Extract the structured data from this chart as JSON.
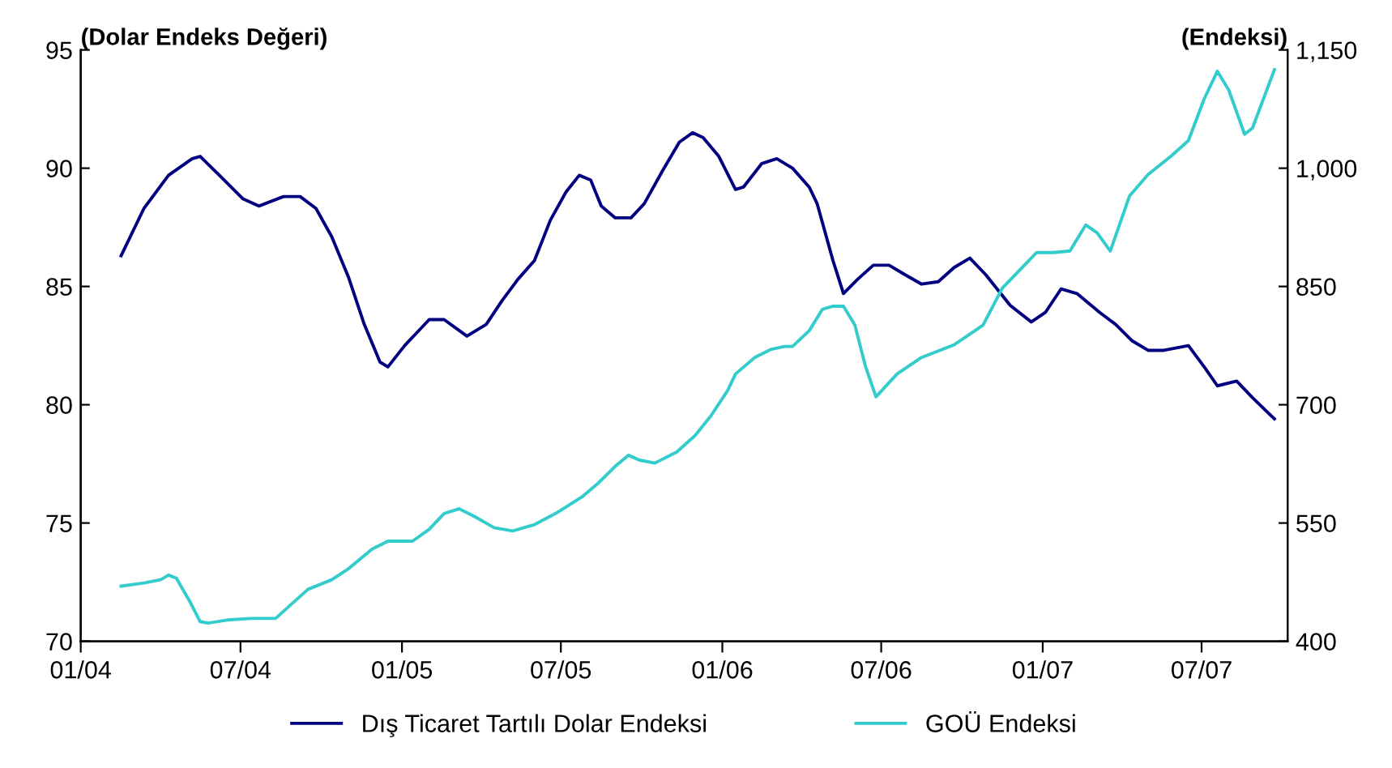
{
  "chart_data": {
    "type": "line",
    "ylabel": "(Dolar Endeks Değeri)",
    "y2label": "(Endeksi)",
    "xlim": [
      "2004-01-01",
      "2007-10-07"
    ],
    "xticks": [
      {
        "value": "2004-01",
        "label": "01/04"
      },
      {
        "value": "2004-07",
        "label": "07/04"
      },
      {
        "value": "2005-01",
        "label": "01/05"
      },
      {
        "value": "2005-07",
        "label": "07/05"
      },
      {
        "value": "2006-01",
        "label": "01/06"
      },
      {
        "value": "2006-07",
        "label": "07/06"
      },
      {
        "value": "2007-01",
        "label": "01/07"
      },
      {
        "value": "2007-07",
        "label": "07/07"
      }
    ],
    "ylim": [
      70,
      95
    ],
    "yticks": [
      70,
      75,
      80,
      85,
      90,
      95
    ],
    "y2lim": [
      400,
      1150
    ],
    "y2ticks": [
      400,
      550,
      700,
      850,
      {
        "value": 1000,
        "label": "1,000"
      },
      {
        "value": 1150,
        "label": "1,150"
      }
    ],
    "grid": false,
    "legend": "bottom",
    "marker": "none",
    "line_style": "solid",
    "series": [
      {
        "name": "Dış Ticaret Tartılı Dolar Endeksi",
        "color": "#000080",
        "x": [
          "2004-02-16",
          "2004-03-13",
          "2004-04-10",
          "2004-05-07",
          "2004-05-16",
          "2004-06-07",
          "2004-07-04",
          "2004-07-22",
          "2004-08-19",
          "2004-09-07",
          "2004-09-25",
          "2004-10-13",
          "2004-11-01",
          "2004-11-19",
          "2004-12-07",
          "2004-12-16",
          "2005-01-04",
          "2005-02-01",
          "2005-02-18",
          "2005-03-16",
          "2005-04-07",
          "2005-04-25",
          "2005-05-13",
          "2005-06-01",
          "2005-06-19",
          "2005-07-07",
          "2005-07-22",
          "2005-08-04",
          "2005-08-16",
          "2005-09-01",
          "2005-09-19",
          "2005-10-04",
          "2005-10-25",
          "2005-11-13",
          "2005-11-28",
          "2005-12-10",
          "2005-12-28",
          "2006-01-16",
          "2006-01-25",
          "2006-02-15",
          "2006-03-04",
          "2006-03-22",
          "2006-04-10",
          "2006-04-19",
          "2006-05-07",
          "2006-05-19",
          "2006-06-04",
          "2006-06-22",
          "2006-07-10",
          "2006-07-28",
          "2006-08-16",
          "2006-09-04",
          "2006-09-22",
          "2006-10-10",
          "2006-10-28",
          "2006-11-25",
          "2006-12-19",
          "2007-01-04",
          "2007-01-22",
          "2007-02-09",
          "2007-03-07",
          "2007-03-25",
          "2007-04-13",
          "2007-05-01",
          "2007-05-19",
          "2007-06-16",
          "2007-07-04",
          "2007-07-19",
          "2007-08-10",
          "2007-08-28",
          "2007-09-22"
        ],
        "values": [
          86.3,
          88.3,
          89.7,
          90.4,
          90.5,
          89.7,
          88.7,
          88.4,
          88.8,
          88.8,
          88.3,
          87.1,
          85.4,
          83.4,
          81.8,
          81.6,
          82.5,
          83.6,
          83.6,
          82.9,
          83.4,
          84.4,
          85.3,
          86.1,
          87.8,
          89.0,
          89.7,
          89.5,
          88.4,
          87.9,
          87.9,
          88.5,
          89.9,
          91.1,
          91.5,
          91.3,
          90.5,
          89.1,
          89.2,
          90.2,
          90.4,
          90.0,
          89.2,
          88.5,
          86.1,
          84.7,
          85.3,
          85.9,
          85.9,
          85.5,
          85.1,
          85.2,
          85.8,
          86.2,
          85.5,
          84.2,
          83.5,
          83.9,
          84.9,
          84.7,
          83.9,
          83.4,
          82.7,
          82.3,
          82.3,
          82.5,
          81.6,
          80.8,
          81.0,
          80.3,
          79.4
        ]
      },
      {
        "name": "GOÜ Endeksi",
        "color": "#33cccc",
        "axis": "y2",
        "x": [
          "2004-02-16",
          "2004-03-13",
          "2004-04-01",
          "2004-04-10",
          "2004-04-19",
          "2004-05-04",
          "2004-05-16",
          "2004-05-25",
          "2004-06-16",
          "2004-07-13",
          "2004-08-10",
          "2004-08-28",
          "2004-09-16",
          "2004-10-13",
          "2004-11-01",
          "2004-11-28",
          "2004-12-16",
          "2005-01-13",
          "2005-02-01",
          "2005-02-18",
          "2005-03-07",
          "2005-03-25",
          "2005-04-16",
          "2005-05-07",
          "2005-06-01",
          "2005-06-28",
          "2005-07-25",
          "2005-08-13",
          "2005-09-01",
          "2005-09-16",
          "2005-09-28",
          "2005-10-16",
          "2005-11-10",
          "2005-12-01",
          "2005-12-19",
          "2006-01-07",
          "2006-01-16",
          "2006-02-07",
          "2006-02-25",
          "2006-03-13",
          "2006-03-22",
          "2006-04-10",
          "2006-04-25",
          "2006-05-07",
          "2006-05-19",
          "2006-06-01",
          "2006-06-13",
          "2006-06-25",
          "2006-07-19",
          "2006-08-16",
          "2006-09-22",
          "2006-10-25",
          "2006-11-16",
          "2006-12-25",
          "2007-01-13",
          "2007-02-01",
          "2007-02-19",
          "2007-03-04",
          "2007-03-19",
          "2007-04-10",
          "2007-05-01",
          "2007-05-28",
          "2007-06-16",
          "2007-07-04",
          "2007-07-19",
          "2007-08-01",
          "2007-08-19",
          "2007-08-28",
          "2007-09-22"
        ],
        "values": [
          470,
          474,
          478,
          484,
          480,
          451,
          425,
          423,
          427,
          429,
          429,
          447,
          466,
          478,
          492,
          517,
          527,
          527,
          542,
          562,
          568,
          558,
          544,
          540,
          548,
          564,
          583,
          601,
          622,
          636,
          630,
          626,
          640,
          661,
          686,
          718,
          739,
          760,
          770,
          774,
          774,
          794,
          821,
          825,
          825,
          801,
          749,
          710,
          739,
          760,
          776,
          801,
          848,
          893,
          893,
          895,
          928,
          918,
          895,
          965,
          992,
          1016,
          1035,
          1088,
          1123,
          1099,
          1043,
          1051,
          1125
        ]
      }
    ]
  }
}
